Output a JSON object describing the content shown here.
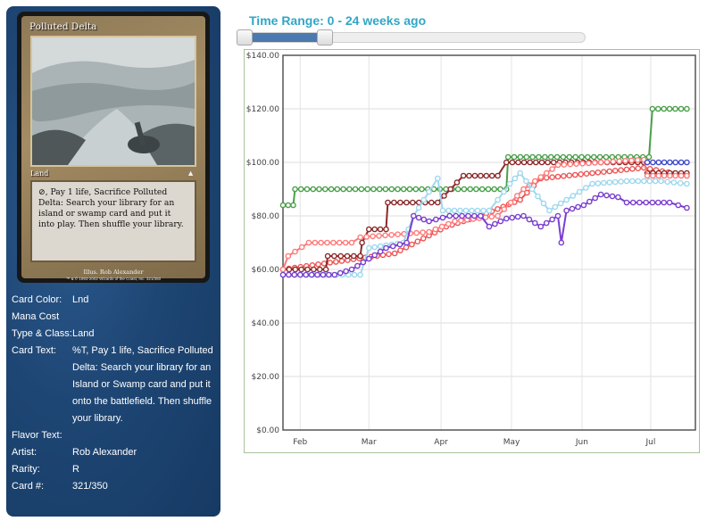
{
  "card": {
    "name": "Polluted Delta",
    "type_line": "Land",
    "rules_text": "⊘, Pay 1 life, Sacrifice Polluted Delta: Search your library for an island or swamp card and put it into play. Then shuffle your library.",
    "illustrator": "Illus. Rob Alexander",
    "copyright": "™ & © 1993-2002 Wizards of the Coast, Inc. 321/350"
  },
  "info": [
    {
      "label": "Card Color:",
      "value": "Lnd"
    },
    {
      "label": "Mana Cost",
      "value": ""
    },
    {
      "label": "Type & Class:",
      "value": "Land"
    },
    {
      "label": "Card Text:",
      "value": "%T, Pay 1 life, Sacrifice Polluted Delta: Search your library for an Island or Swamp card and put it onto the battlefield. Then shuffle your library."
    },
    {
      "label": "Flavor Text:",
      "value": ""
    },
    {
      "label": "Artist:",
      "value": "Rob Alexander"
    },
    {
      "label": "Rarity:",
      "value": "R"
    },
    {
      "label": "Card #:",
      "value": "321/350"
    }
  ],
  "range": {
    "title": "Time Range: 0 - 24 weeks ago",
    "min_weeks": 0,
    "max_weeks": 24,
    "selected_fraction": [
      0.0,
      0.24
    ]
  },
  "colors": {
    "panel_bg": "#1e4674",
    "title_accent": "#31a6c6",
    "slider_fill": "#4a7ab0",
    "chart_border": "#a7c39a"
  },
  "chart_data": {
    "type": "line",
    "ylim": [
      0,
      140
    ],
    "yticks": [
      0,
      20,
      40,
      60,
      80,
      100,
      120,
      140
    ],
    "ytick_labels": [
      "$0.00",
      "$20.00",
      "$40.00",
      "$60.00",
      "$80.00",
      "$100.00",
      "$120.00",
      "$140.00"
    ],
    "xlim": [
      0,
      24
    ],
    "xticks": [
      {
        "x": 1,
        "label": "Feb"
      },
      {
        "x": 5,
        "label": "Mar"
      },
      {
        "x": 9.2,
        "label": "Apr"
      },
      {
        "x": 13.3,
        "label": "May"
      },
      {
        "x": 17.4,
        "label": "Jun"
      },
      {
        "x": 21.4,
        "label": "Jul"
      }
    ],
    "grid": true,
    "series": [
      {
        "color": "#4aa04a",
        "points": [
          [
            0,
            84
          ],
          [
            0.6,
            84
          ],
          [
            0.7,
            90
          ],
          [
            13,
            90
          ],
          [
            13.1,
            102
          ],
          [
            21.3,
            102
          ],
          [
            21.5,
            120
          ],
          [
            23.5,
            120
          ]
        ]
      },
      {
        "color": "#ee5555",
        "points": [
          [
            0,
            60
          ],
          [
            6.5,
            66
          ],
          [
            9.5,
            76
          ],
          [
            11.5,
            80
          ],
          [
            13.8,
            86
          ],
          [
            15,
            94
          ],
          [
            18,
            96
          ],
          [
            21,
            98
          ],
          [
            23.5,
            95
          ]
        ]
      },
      {
        "color": "#8b2a2a",
        "points": [
          [
            0,
            60
          ],
          [
            2.5,
            60
          ],
          [
            2.6,
            65
          ],
          [
            4.5,
            65
          ],
          [
            4.6,
            70
          ],
          [
            5,
            75
          ],
          [
            6,
            75
          ],
          [
            6.1,
            85
          ],
          [
            9,
            85
          ],
          [
            10.5,
            95
          ],
          [
            12.5,
            95
          ],
          [
            13,
            100
          ],
          [
            18.5,
            100
          ],
          [
            21,
            100
          ],
          [
            21.2,
            96
          ],
          [
            23.5,
            96
          ]
        ]
      },
      {
        "color": "#ff7a7a",
        "points": [
          [
            0,
            60
          ],
          [
            0.3,
            65
          ],
          [
            1.5,
            70
          ],
          [
            4,
            70
          ],
          [
            4.5,
            72
          ],
          [
            8.5,
            74
          ],
          [
            10,
            78
          ],
          [
            12.5,
            80
          ],
          [
            14,
            90
          ],
          [
            16,
            99
          ],
          [
            21,
            101
          ],
          [
            21.2,
            95
          ],
          [
            23.5,
            95
          ]
        ]
      },
      {
        "color": "#9fd8ee",
        "points": [
          [
            0,
            58
          ],
          [
            4.5,
            58
          ],
          [
            5,
            68
          ],
          [
            7,
            70
          ],
          [
            7.6,
            80
          ],
          [
            8.5,
            89
          ],
          [
            9,
            94
          ],
          [
            9.3,
            82
          ],
          [
            12,
            82
          ],
          [
            12.5,
            86
          ],
          [
            13.2,
            92
          ],
          [
            13.8,
            96
          ],
          [
            14.5,
            90
          ],
          [
            15.5,
            82
          ],
          [
            16.5,
            86
          ],
          [
            18,
            92
          ],
          [
            20,
            93
          ],
          [
            22,
            93
          ],
          [
            23.5,
            92
          ]
        ]
      },
      {
        "color": "#7a3fcf",
        "points": [
          [
            0,
            58
          ],
          [
            3,
            58
          ],
          [
            4,
            60
          ],
          [
            5,
            64
          ],
          [
            6,
            68
          ],
          [
            7.2,
            70
          ],
          [
            7.6,
            80
          ],
          [
            8.5,
            78
          ],
          [
            9.7,
            80
          ],
          [
            11.5,
            80
          ],
          [
            12,
            76
          ],
          [
            13,
            79
          ],
          [
            14,
            80
          ],
          [
            15,
            76
          ],
          [
            16,
            80
          ],
          [
            16.2,
            70
          ],
          [
            16.5,
            82
          ],
          [
            17.5,
            84
          ],
          [
            18.5,
            88
          ],
          [
            19.5,
            87
          ],
          [
            20,
            85
          ],
          [
            21.5,
            85
          ],
          [
            22.5,
            85
          ],
          [
            23,
            84
          ],
          [
            23.5,
            83
          ]
        ]
      },
      {
        "color": "#3d48cc",
        "points": [
          [
            21.2,
            100
          ],
          [
            23.5,
            100
          ]
        ]
      }
    ]
  }
}
